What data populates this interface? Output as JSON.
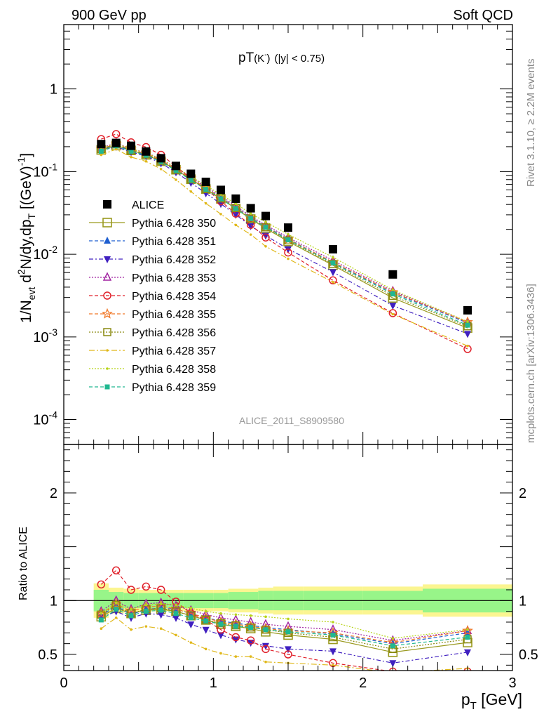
{
  "header": {
    "left": "900 GeV pp",
    "right": "Soft QCD"
  },
  "side_labels": {
    "rivet": "Rivet 3.1.10, ≥ 2.2M events",
    "mcplots": "mcplots.cern.ch [arXiv:1306.3436]"
  },
  "chart_data": [
    {
      "type": "line",
      "panel": "main",
      "title_main": "pT",
      "title_particle": "(K",
      "title_particle_sup": "-",
      "title_particle_close": ")",
      "title_cut": "(|y| < 0.75)",
      "ylabel": "1/N_evt d^2N/dy,dp_T [(GeV)^-1]",
      "ylabel_parts": {
        "a": "1/N",
        "a_sub": "evt",
        "b": " d",
        "b_sup": "2",
        "c": "N/dy,dp",
        "c_sub": "T",
        "d": " [(GeV)",
        "d_sup": "-1",
        "e": "]"
      },
      "yscale": "log",
      "ylim": [
        5e-05,
        6
      ],
      "xlim": [
        0,
        3
      ],
      "yticks": [
        {
          "v": 0.0001,
          "base": "10",
          "exp": "-4"
        },
        {
          "v": 0.001,
          "base": "10",
          "exp": "-3"
        },
        {
          "v": 0.01,
          "base": "10",
          "exp": "-2"
        },
        {
          "v": 0.1,
          "base": "10",
          "exp": "-1"
        },
        {
          "v": 1,
          "base": "1",
          "exp": ""
        }
      ],
      "watermark": "ALICE_2011_S8909580",
      "legend_position": "left",
      "x": [
        0.25,
        0.35,
        0.45,
        0.55,
        0.65,
        0.75,
        0.85,
        0.95,
        1.05,
        1.15,
        1.25,
        1.35,
        1.5,
        1.8,
        2.2,
        2.7
      ],
      "reference": {
        "name": "ALICE",
        "values": [
          0.215,
          0.222,
          0.205,
          0.175,
          0.145,
          0.117,
          0.094,
          0.075,
          0.06,
          0.047,
          0.036,
          0.029,
          0.021,
          0.0115,
          0.0057,
          0.0021
        ]
      },
      "series": [
        {
          "name": "Pythia 6.428 350",
          "color": "#9a9a1f",
          "dash": "",
          "marker": "open-square-big",
          "ratio": [
            0.85,
            0.93,
            0.88,
            0.91,
            0.92,
            0.9,
            0.86,
            0.82,
            0.78,
            0.76,
            0.74,
            0.71,
            0.68,
            0.64,
            0.52,
            0.61
          ]
        },
        {
          "name": "Pythia 6.428 351",
          "color": "#1f5fd0",
          "dash": "5,3",
          "marker": "triangle-up",
          "ratio": [
            0.86,
            0.95,
            0.87,
            0.92,
            0.93,
            0.92,
            0.88,
            0.84,
            0.81,
            0.79,
            0.77,
            0.75,
            0.73,
            0.69,
            0.6,
            0.7
          ]
        },
        {
          "name": "Pythia 6.428 352",
          "color": "#4020c0",
          "dash": "6,3,2,3",
          "marker": "triangle-down",
          "ratio": [
            0.84,
            0.9,
            0.84,
            0.88,
            0.87,
            0.84,
            0.78,
            0.73,
            0.68,
            0.64,
            0.61,
            0.58,
            0.55,
            0.53,
            0.42,
            0.52
          ]
        },
        {
          "name": "Pythia 6.428 353",
          "color": "#a020a0",
          "dash": "2,2",
          "marker": "open-triangle-up",
          "ratio": [
            0.9,
            1.0,
            0.92,
            0.97,
            0.98,
            0.95,
            0.91,
            0.87,
            0.84,
            0.82,
            0.8,
            0.78,
            0.76,
            0.73,
            0.63,
            0.72
          ]
        },
        {
          "name": "Pythia 6.428 354",
          "color": "#e0202a",
          "dash": "5,3",
          "marker": "open-circle",
          "ratio": [
            1.15,
            1.28,
            1.1,
            1.13,
            1.1,
            0.99,
            0.88,
            0.82,
            0.73,
            0.66,
            0.63,
            0.55,
            0.5,
            0.42,
            0.34,
            0.34
          ]
        },
        {
          "name": "Pythia 6.428 355",
          "color": "#f07828",
          "dash": "5,3",
          "marker": "star",
          "ratio": [
            0.88,
            0.97,
            0.9,
            0.94,
            0.95,
            0.92,
            0.88,
            0.84,
            0.8,
            0.78,
            0.76,
            0.74,
            0.72,
            0.7,
            0.61,
            0.72
          ]
        },
        {
          "name": "Pythia 6.428 356",
          "color": "#8a8a10",
          "dash": "2,2",
          "marker": "open-square",
          "ratio": [
            0.87,
            0.96,
            0.88,
            0.92,
            0.93,
            0.9,
            0.86,
            0.82,
            0.79,
            0.77,
            0.75,
            0.73,
            0.7,
            0.66,
            0.55,
            0.64
          ]
        },
        {
          "name": "Pythia 6.428 357",
          "color": "#e0b81a",
          "dash": "8,3,2,3",
          "marker": "small-dot",
          "ratio": [
            0.74,
            0.84,
            0.73,
            0.76,
            0.74,
            0.68,
            0.61,
            0.55,
            0.51,
            0.48,
            0.48,
            0.43,
            0.42,
            0.4,
            0.33,
            0.37
          ]
        },
        {
          "name": "Pythia 6.428 358",
          "color": "#b8d41a",
          "dash": "2,2",
          "marker": "small-dot",
          "ratio": [
            0.88,
            0.98,
            0.92,
            0.96,
            0.97,
            0.96,
            0.93,
            0.9,
            0.88,
            0.87,
            0.86,
            0.85,
            0.83,
            0.8,
            0.65,
            0.73
          ]
        },
        {
          "name": "Pythia 6.428 359",
          "color": "#20b890",
          "dash": "5,3",
          "marker": "filled-square-small",
          "ratio": [
            0.82,
            0.92,
            0.86,
            0.9,
            0.91,
            0.88,
            0.84,
            0.81,
            0.78,
            0.76,
            0.75,
            0.73,
            0.71,
            0.68,
            0.58,
            0.66
          ]
        }
      ]
    },
    {
      "type": "line",
      "panel": "ratio",
      "ylabel": "Ratio to ALICE",
      "xlabel": "p_T [GeV]",
      "xlabel_parts": {
        "a": "p",
        "a_sub": "T",
        "b": " [GeV]"
      },
      "ylim": [
        0.35,
        2.45
      ],
      "xlim": [
        0,
        3
      ],
      "yticks": [
        0.5,
        1,
        2
      ],
      "ytick_labels": [
        "0.5",
        "1",
        "2"
      ],
      "xticks": [
        0,
        1,
        2,
        3
      ],
      "xtick_labels": [
        "0",
        "1",
        "2",
        "3"
      ],
      "band_bins": [
        0.2,
        0.3,
        0.4,
        0.5,
        0.6,
        0.7,
        0.8,
        0.9,
        1.0,
        1.1,
        1.2,
        1.3,
        1.4,
        1.6,
        2.0,
        2.4,
        3.0
      ],
      "band_inner": [
        0.1,
        0.08,
        0.07,
        0.07,
        0.07,
        0.07,
        0.07,
        0.07,
        0.07,
        0.08,
        0.08,
        0.09,
        0.09,
        0.09,
        0.09,
        0.11
      ],
      "band_outer": [
        0.16,
        0.12,
        0.11,
        0.1,
        0.1,
        0.1,
        0.1,
        0.1,
        0.1,
        0.11,
        0.11,
        0.12,
        0.13,
        0.13,
        0.13,
        0.15
      ]
    }
  ]
}
